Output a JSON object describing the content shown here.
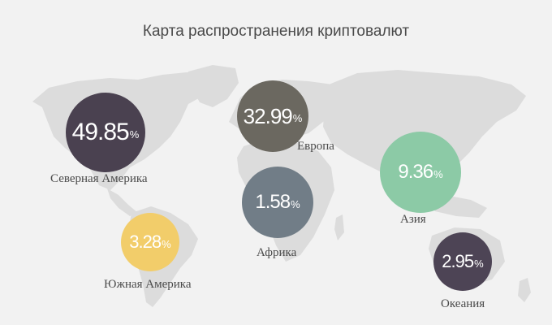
{
  "title": "Карта распространения криптовалют",
  "regions": [
    {
      "id": "north-america",
      "label": "Северная Америка",
      "value_text": "49.85",
      "percent": 49.85,
      "unit": "%",
      "color": "#4a4150"
    },
    {
      "id": "europe",
      "label": "Европа",
      "value_text": "32.99",
      "percent": 32.99,
      "unit": "%",
      "color": "#6b6860"
    },
    {
      "id": "asia",
      "label": "Азия",
      "value_text": "9.36",
      "percent": 9.36,
      "unit": "%",
      "color": "#8ccaa6"
    },
    {
      "id": "africa",
      "label": "Африка",
      "value_text": "1.58",
      "percent": 1.58,
      "unit": "%",
      "color": "#717d87"
    },
    {
      "id": "south-america",
      "label": "Южная Америка",
      "value_text": "3.28",
      "percent": 3.28,
      "unit": "%",
      "color": "#f2cd6a"
    },
    {
      "id": "oceania",
      "label": "Океания",
      "value_text": "2.95",
      "percent": 2.95,
      "unit": "%",
      "color": "#4d4455"
    }
  ],
  "colors": {
    "background": "#f2f2f2",
    "land": "#dcdcdc",
    "text": "#4a4a4a"
  }
}
